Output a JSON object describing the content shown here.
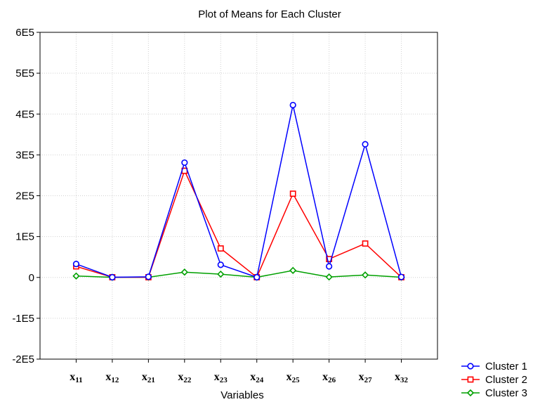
{
  "chart_data": {
    "type": "line",
    "title": "Plot of Means for Each Cluster",
    "xlabel": "Variables",
    "ylabel": "",
    "categories": [
      {
        "main": "x",
        "sub": "11"
      },
      {
        "main": "x",
        "sub": "12"
      },
      {
        "main": "x",
        "sub": "21"
      },
      {
        "main": "x",
        "sub": "22"
      },
      {
        "main": "x",
        "sub": "23"
      },
      {
        "main": "x",
        "sub": "24"
      },
      {
        "main": "x",
        "sub": "25"
      },
      {
        "main": "x",
        "sub": "26"
      },
      {
        "main": "x",
        "sub": "27"
      },
      {
        "main": "x",
        "sub": "32"
      }
    ],
    "ylim": [
      -200000,
      600000
    ],
    "yticks": [
      {
        "value": 600000,
        "label": "6E5"
      },
      {
        "value": 500000,
        "label": "5E5"
      },
      {
        "value": 400000,
        "label": "4E5"
      },
      {
        "value": 300000,
        "label": "3E5"
      },
      {
        "value": 200000,
        "label": "2E5"
      },
      {
        "value": 100000,
        "label": "1E5"
      },
      {
        "value": 0,
        "label": "0"
      },
      {
        "value": -100000,
        "label": "-1E5"
      },
      {
        "value": -200000,
        "label": "-2E5"
      }
    ],
    "grid": true,
    "legend_position": "bottom-right",
    "series": [
      {
        "name": "Cluster  1",
        "color": "#0000ff",
        "marker": "circle",
        "values": [
          33000,
          500,
          1500,
          281000,
          31000,
          500,
          422000,
          27000,
          326000,
          1000
        ]
      },
      {
        "name": "Cluster  2",
        "color": "#ff0000",
        "marker": "square",
        "values": [
          27000,
          500,
          500,
          261000,
          71000,
          500,
          205000,
          45000,
          83000,
          500
        ]
      },
      {
        "name": "Cluster  3",
        "color": "#00a000",
        "marker": "diamond",
        "values": [
          3500,
          300,
          500,
          13000,
          8000,
          500,
          17000,
          1000,
          6000,
          500
        ]
      }
    ]
  }
}
